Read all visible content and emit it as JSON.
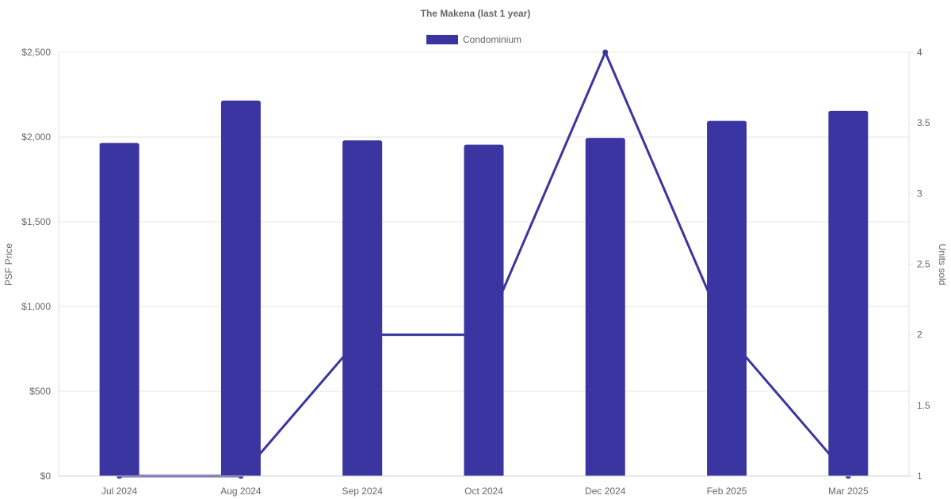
{
  "chart_data": {
    "type": "bar",
    "title": "The Makena (last 1 year)",
    "categories": [
      "Jul 2024",
      "Aug 2024",
      "Sep 2024",
      "Oct 2024",
      "Dec 2024",
      "Feb 2025",
      "Mar 2025"
    ],
    "series": [
      {
        "name": "Condominium",
        "type": "bar",
        "axis": "left",
        "color": "#3a35a0",
        "values": [
          1965,
          2215,
          1980,
          1955,
          1995,
          2095,
          2155
        ]
      },
      {
        "type": "line",
        "axis": "right",
        "color": "#3a35a0",
        "values": [
          1,
          1,
          2,
          2,
          4,
          2,
          1
        ]
      }
    ],
    "y_left": {
      "label": "PSF Price",
      "min": 0,
      "max": 2500,
      "ticks": [
        0,
        500,
        1000,
        1500,
        2000,
        2500
      ],
      "tick_labels": [
        "$0",
        "$500",
        "$1,000",
        "$1,500",
        "$2,000",
        "$2,500"
      ]
    },
    "y_right": {
      "label": "Units sold",
      "min": 1,
      "max": 4,
      "ticks": [
        1,
        1.5,
        2,
        2.5,
        3,
        3.5,
        4
      ],
      "tick_labels": [
        "1",
        "1.5",
        "2",
        "2.5",
        "3",
        "3.5",
        "4"
      ]
    },
    "grid": true,
    "legend_position": "top-center"
  }
}
